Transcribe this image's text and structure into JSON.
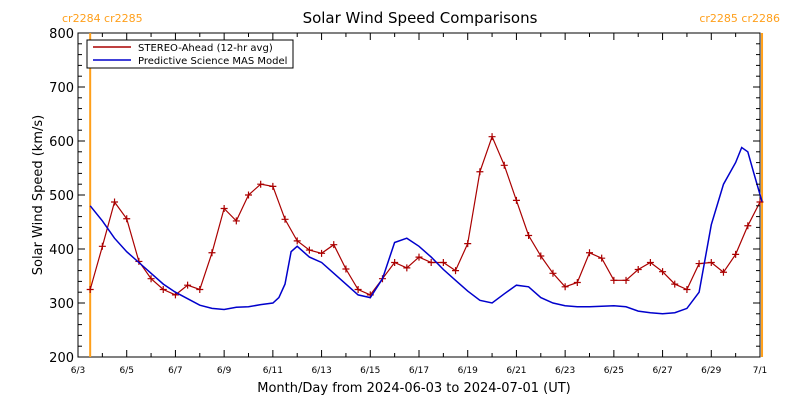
{
  "chart_data": {
    "type": "line",
    "title": "Solar Wind Speed Comparisons",
    "xlabel": "Month/Day from 2024-06-03 to 2024-07-01 (UT)",
    "ylabel": "Solar Wind Speed (km/s)",
    "xlim": [
      "2024-06-03",
      "2024-07-01"
    ],
    "ylim": [
      200,
      800
    ],
    "x_tick_labels": [
      "6/3",
      "6/5",
      "6/7",
      "6/9",
      "6/11",
      "6/13",
      "6/15",
      "6/17",
      "6/19",
      "6/21",
      "6/23",
      "6/25",
      "6/27",
      "6/29",
      "7/1"
    ],
    "y_tick_labels": [
      200,
      300,
      400,
      500,
      600,
      700,
      800
    ],
    "legend_position": "top-left",
    "carrington_markers": [
      {
        "date": "2024-06-03T12:00",
        "label": "cr2284 cr2285"
      },
      {
        "date": "2024-07-01T02:00",
        "label": "cr2285 cr2286"
      }
    ],
    "series": [
      {
        "name": "STEREO-Ahead (12-hr avg)",
        "color": "#aa0000",
        "marker": "plus",
        "x": [
          "2024-06-03T12:00",
          "2024-06-04T00:00",
          "2024-06-04T12:00",
          "2024-06-05T00:00",
          "2024-06-05T12:00",
          "2024-06-06T00:00",
          "2024-06-06T12:00",
          "2024-06-07T00:00",
          "2024-06-07T12:00",
          "2024-06-08T00:00",
          "2024-06-08T12:00",
          "2024-06-09T00:00",
          "2024-06-09T12:00",
          "2024-06-10T00:00",
          "2024-06-10T12:00",
          "2024-06-11T00:00",
          "2024-06-11T12:00",
          "2024-06-12T00:00",
          "2024-06-12T12:00",
          "2024-06-13T00:00",
          "2024-06-13T12:00",
          "2024-06-14T00:00",
          "2024-06-14T12:00",
          "2024-06-15T00:00",
          "2024-06-15T12:00",
          "2024-06-16T00:00",
          "2024-06-16T12:00",
          "2024-06-17T00:00",
          "2024-06-17T12:00",
          "2024-06-18T00:00",
          "2024-06-18T12:00",
          "2024-06-19T00:00",
          "2024-06-19T12:00",
          "2024-06-20T00:00",
          "2024-06-20T12:00",
          "2024-06-21T00:00",
          "2024-06-21T12:00",
          "2024-06-22T00:00",
          "2024-06-22T12:00",
          "2024-06-23T00:00",
          "2024-06-23T12:00",
          "2024-06-24T00:00",
          "2024-06-24T12:00",
          "2024-06-25T00:00",
          "2024-06-25T12:00",
          "2024-06-26T00:00",
          "2024-06-26T12:00",
          "2024-06-27T00:00",
          "2024-06-27T12:00",
          "2024-06-28T00:00",
          "2024-06-28T12:00",
          "2024-06-29T00:00",
          "2024-06-29T12:00",
          "2024-06-30T00:00",
          "2024-06-30T12:00",
          "2024-07-01T00:00"
        ],
        "y": [
          325,
          405,
          487,
          456,
          377,
          345,
          325,
          315,
          333,
          325,
          393,
          475,
          452,
          500,
          520,
          516,
          455,
          415,
          398,
          392,
          408,
          363,
          325,
          315,
          345,
          375,
          365,
          385,
          375,
          375,
          360,
          410,
          543,
          608,
          555,
          490,
          425,
          387,
          355,
          330,
          338,
          393,
          383,
          342,
          342,
          362,
          375,
          358,
          335,
          325,
          373,
          375,
          357,
          390,
          443,
          487
        ]
      },
      {
        "name": "Predictive Science MAS Model",
        "color": "#0000cc",
        "marker": "none",
        "x": [
          "2024-06-03T12:00",
          "2024-06-04T00:00",
          "2024-06-04T12:00",
          "2024-06-05T00:00",
          "2024-06-05T12:00",
          "2024-06-06T00:00",
          "2024-06-06T12:00",
          "2024-06-07T00:00",
          "2024-06-07T12:00",
          "2024-06-08T00:00",
          "2024-06-08T12:00",
          "2024-06-09T00:00",
          "2024-06-09T12:00",
          "2024-06-10T00:00",
          "2024-06-10T12:00",
          "2024-06-11T00:00",
          "2024-06-11T06:00",
          "2024-06-11T12:00",
          "2024-06-11T18:00",
          "2024-06-12T00:00",
          "2024-06-12T12:00",
          "2024-06-13T00:00",
          "2024-06-13T12:00",
          "2024-06-14T00:00",
          "2024-06-14T12:00",
          "2024-06-15T00:00",
          "2024-06-15T12:00",
          "2024-06-16T00:00",
          "2024-06-16T12:00",
          "2024-06-17T00:00",
          "2024-06-17T12:00",
          "2024-06-18T00:00",
          "2024-06-18T12:00",
          "2024-06-19T00:00",
          "2024-06-19T12:00",
          "2024-06-20T00:00",
          "2024-06-20T12:00",
          "2024-06-21T00:00",
          "2024-06-21T12:00",
          "2024-06-22T00:00",
          "2024-06-22T12:00",
          "2024-06-23T00:00",
          "2024-06-23T12:00",
          "2024-06-24T00:00",
          "2024-06-24T12:00",
          "2024-06-25T00:00",
          "2024-06-25T12:00",
          "2024-06-26T00:00",
          "2024-06-26T12:00",
          "2024-06-27T00:00",
          "2024-06-27T12:00",
          "2024-06-28T00:00",
          "2024-06-28T12:00",
          "2024-06-29T00:00",
          "2024-06-29T12:00",
          "2024-06-30T00:00",
          "2024-06-30T06:00",
          "2024-06-30T12:00",
          "2024-06-30T18:00",
          "2024-07-01T02:00"
        ],
        "y": [
          480,
          452,
          420,
          395,
          375,
          355,
          335,
          320,
          308,
          296,
          290,
          288,
          292,
          293,
          297,
          300,
          310,
          335,
          395,
          405,
          385,
          375,
          355,
          335,
          315,
          310,
          345,
          412,
          420,
          405,
          385,
          362,
          342,
          322,
          305,
          300,
          317,
          333,
          330,
          310,
          300,
          295,
          293,
          293,
          294,
          295,
          293,
          285,
          282,
          280,
          282,
          290,
          320,
          445,
          520,
          560,
          588,
          580,
          540,
          488
        ]
      }
    ]
  }
}
